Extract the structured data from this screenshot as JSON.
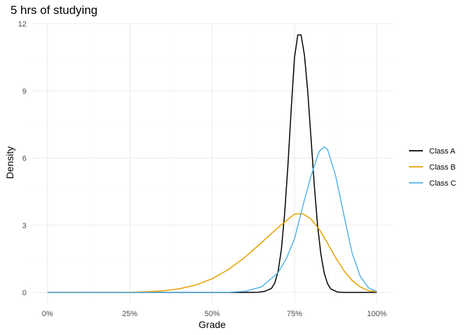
{
  "chart_data": {
    "type": "line",
    "title": "5 hrs of studying",
    "xlabel": "Grade",
    "ylabel": "Density",
    "xlim": [
      0,
      1
    ],
    "ylim": [
      0,
      12
    ],
    "x_ticks": [
      0,
      0.25,
      0.5,
      0.75,
      1.0
    ],
    "x_tick_labels": [
      "0%",
      "25%",
      "50%",
      "75%",
      "100%"
    ],
    "y_ticks": [
      0,
      3,
      6,
      9,
      12
    ],
    "y_tick_labels": [
      "0",
      "3",
      "6",
      "9",
      "12"
    ],
    "grid": true,
    "legend_position": "right",
    "series": [
      {
        "name": "Class A",
        "color": "#000000",
        "x": [
          0.0,
          0.6,
          0.64,
          0.66,
          0.68,
          0.69,
          0.7,
          0.71,
          0.72,
          0.73,
          0.74,
          0.75,
          0.76,
          0.77,
          0.78,
          0.79,
          0.8,
          0.81,
          0.82,
          0.83,
          0.84,
          0.85,
          0.86,
          0.88,
          0.9,
          1.0
        ],
        "values": [
          0,
          0,
          0.01,
          0.05,
          0.18,
          0.42,
          0.93,
          1.9,
          3.5,
          5.7,
          8.2,
          10.5,
          11.5,
          11.5,
          10.6,
          9.0,
          6.9,
          4.8,
          3.0,
          1.7,
          0.87,
          0.4,
          0.16,
          0.02,
          0,
          0
        ]
      },
      {
        "name": "Class B",
        "color": "#E69F00",
        "x": [
          0.0,
          0.25,
          0.3,
          0.35,
          0.4,
          0.45,
          0.5,
          0.55,
          0.6,
          0.65,
          0.7,
          0.725,
          0.75,
          0.775,
          0.8,
          0.825,
          0.85,
          0.875,
          0.9,
          0.925,
          0.95,
          0.975,
          1.0
        ],
        "values": [
          0,
          0.01,
          0.03,
          0.07,
          0.16,
          0.33,
          0.61,
          1.03,
          1.58,
          2.23,
          2.9,
          3.2,
          3.5,
          3.52,
          3.28,
          2.82,
          2.2,
          1.55,
          0.97,
          0.53,
          0.24,
          0.08,
          0.02
        ]
      },
      {
        "name": "Class C",
        "color": "#56B4E9",
        "x": [
          0.0,
          0.5,
          0.55,
          0.6,
          0.65,
          0.7,
          0.725,
          0.75,
          0.775,
          0.8,
          0.825,
          0.84,
          0.85,
          0.875,
          0.9,
          0.925,
          0.95,
          0.975,
          1.0
        ],
        "values": [
          0,
          0,
          0.01,
          0.05,
          0.25,
          0.88,
          1.51,
          2.4,
          3.85,
          5.2,
          6.3,
          6.5,
          6.4,
          5.2,
          3.45,
          1.75,
          0.7,
          0.2,
          0.04
        ]
      }
    ]
  }
}
